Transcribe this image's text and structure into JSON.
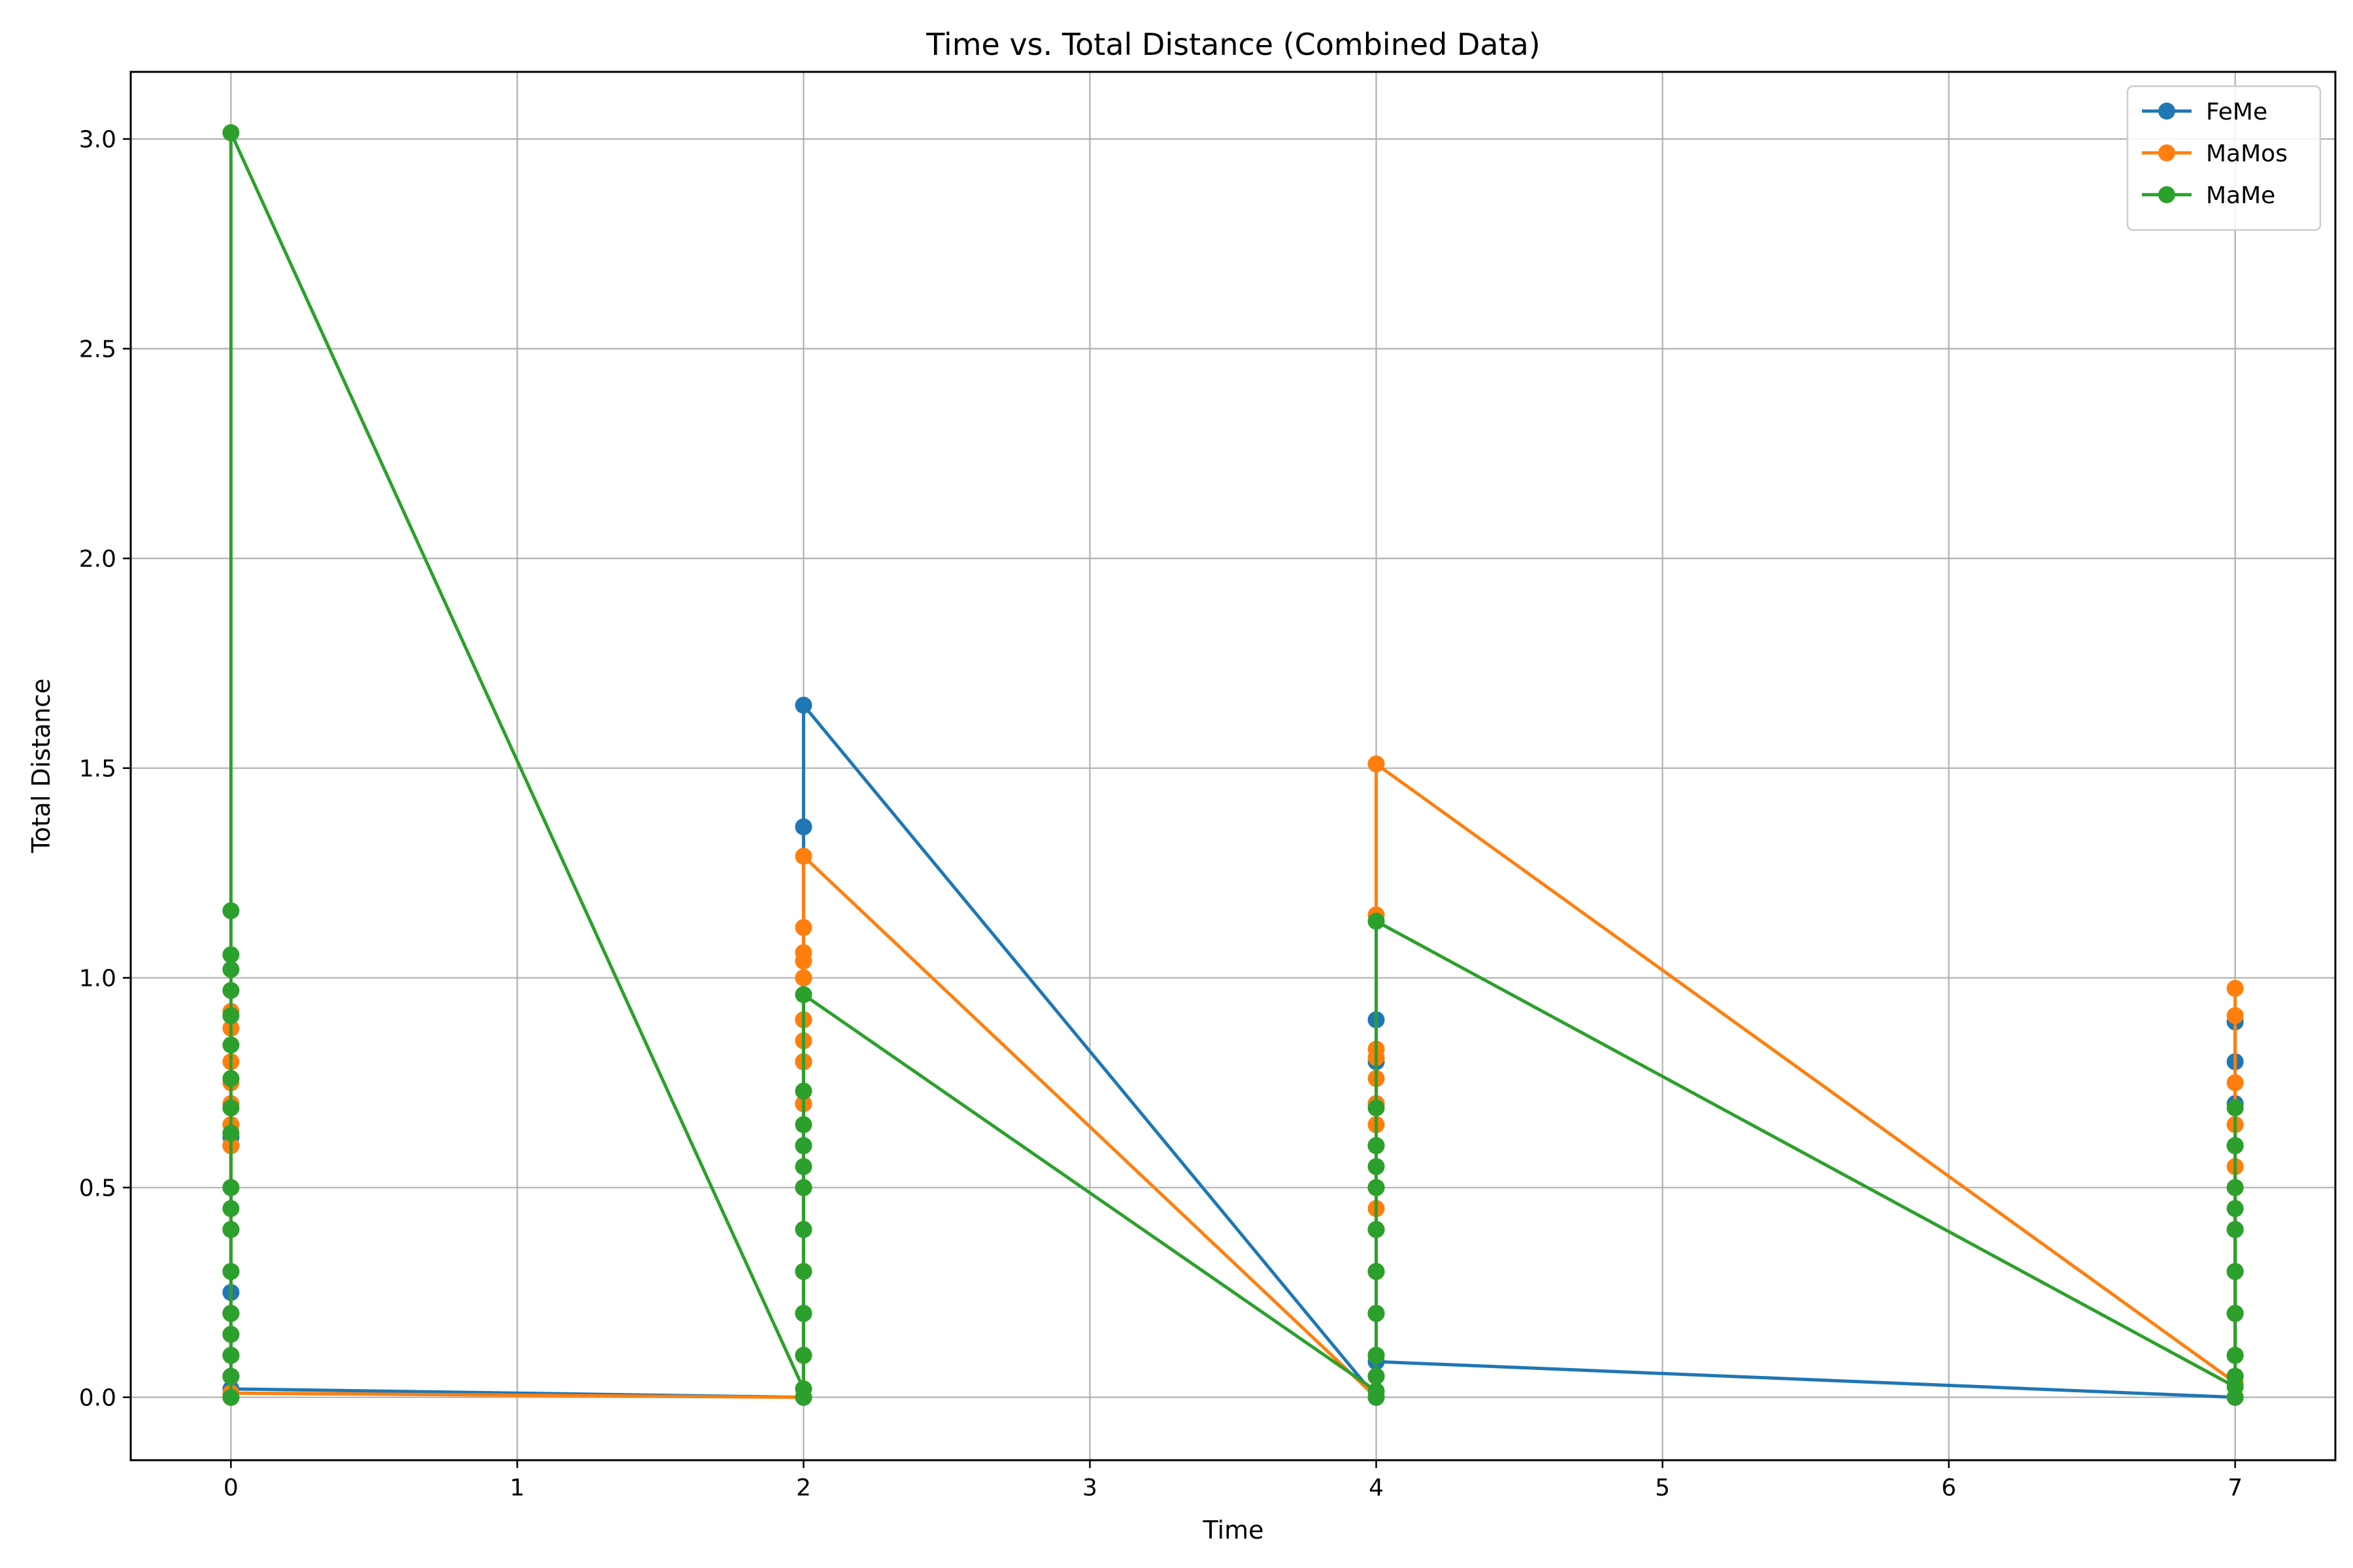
{
  "chart_data": {
    "type": "line",
    "title": "Time vs. Total Distance (Combined Data)",
    "xlabel": "Time",
    "ylabel": "Total Distance",
    "xlim": [
      -0.35,
      7.35
    ],
    "ylim": [
      -0.15,
      3.16
    ],
    "xticks": [
      0,
      1,
      2,
      3,
      4,
      5,
      6,
      7
    ],
    "yticks": [
      0.0,
      0.5,
      1.0,
      1.5,
      2.0,
      2.5,
      3.0
    ],
    "xtick_labels": [
      "0",
      "1",
      "2",
      "3",
      "4",
      "5",
      "6",
      "7"
    ],
    "ytick_labels": [
      "0.0",
      "0.5",
      "1.0",
      "1.5",
      "2.0",
      "2.5",
      "3.0"
    ],
    "grid": true,
    "legend_position": "top-right",
    "series": [
      {
        "name": "FeMe",
        "color": "#1f77b4",
        "x": [
          0,
          0,
          0,
          0,
          0,
          0,
          0,
          0,
          0,
          0,
          0,
          0,
          2,
          2,
          2,
          2,
          2,
          2,
          2,
          2,
          2,
          2,
          2,
          2,
          2,
          4,
          4,
          4,
          4,
          4,
          4,
          4,
          4,
          4,
          4,
          4,
          4,
          7,
          7,
          7,
          7,
          7,
          7,
          7,
          7,
          7,
          7,
          7
        ],
        "y": [
          0.0,
          0.05,
          0.1,
          0.15,
          0.2,
          0.25,
          0.3,
          0.4,
          0.5,
          0.6,
          0.62,
          0.02,
          0.0,
          0.1,
          0.2,
          0.3,
          0.4,
          0.5,
          0.6,
          0.7,
          0.8,
          0.9,
          1.0,
          1.36,
          1.65,
          0.0,
          0.05,
          0.1,
          0.2,
          0.3,
          0.4,
          0.5,
          0.6,
          0.7,
          0.8,
          0.9,
          0.085,
          0.0,
          0.05,
          0.1,
          0.2,
          0.3,
          0.4,
          0.5,
          0.6,
          0.7,
          0.8,
          0.895
        ]
      },
      {
        "name": "MaMos",
        "color": "#ff7f0e",
        "x": [
          0,
          0,
          0,
          0,
          0,
          0,
          0,
          0,
          0,
          0,
          0,
          0,
          0,
          0,
          0,
          2,
          2,
          2,
          2,
          2,
          2,
          2,
          2,
          2,
          2,
          2,
          2,
          2,
          2,
          2,
          2,
          4,
          4,
          4,
          4,
          4,
          4,
          4,
          4,
          4,
          4,
          4,
          4,
          4,
          4,
          4,
          4,
          7,
          7,
          7,
          7,
          7,
          7,
          7,
          7,
          7,
          7,
          7,
          7
        ],
        "y": [
          0.0,
          0.05,
          0.1,
          0.2,
          0.3,
          0.4,
          0.5,
          0.6,
          0.65,
          0.7,
          0.75,
          0.8,
          0.88,
          0.92,
          0.01,
          0.0,
          0.1,
          0.2,
          0.3,
          0.4,
          0.5,
          0.6,
          0.7,
          0.8,
          0.85,
          0.9,
          1.0,
          1.04,
          1.06,
          1.12,
          1.29,
          0.0,
          0.05,
          0.1,
          0.2,
          0.3,
          0.4,
          0.45,
          0.5,
          0.6,
          0.65,
          0.7,
          0.76,
          0.81,
          0.83,
          1.15,
          1.51,
          0.035,
          0.0,
          0.1,
          0.2,
          0.3,
          0.4,
          0.5,
          0.55,
          0.65,
          0.75,
          0.91,
          0.975
        ]
      },
      {
        "name": "MaMe",
        "color": "#2ca02c",
        "x": [
          0,
          0,
          0,
          0,
          0,
          0,
          0,
          0,
          0,
          0,
          0,
          0,
          0,
          0,
          0,
          0,
          0,
          0,
          0,
          2,
          2,
          2,
          2,
          2,
          2,
          2,
          2,
          2,
          2,
          2,
          2,
          4,
          4,
          4,
          4,
          4,
          4,
          4,
          4,
          4,
          4,
          4,
          4,
          7,
          7,
          7,
          7,
          7,
          7,
          7,
          7,
          7,
          7,
          7
        ],
        "y": [
          0.0,
          0.05,
          0.1,
          0.15,
          0.2,
          0.3,
          0.4,
          0.45,
          0.5,
          0.63,
          0.69,
          0.76,
          0.84,
          0.91,
          0.97,
          1.02,
          1.055,
          1.16,
          3.015,
          0.02,
          0.0,
          0.1,
          0.2,
          0.3,
          0.4,
          0.5,
          0.55,
          0.6,
          0.65,
          0.73,
          0.96,
          0.015,
          0.0,
          0.05,
          0.1,
          0.2,
          0.3,
          0.4,
          0.5,
          0.55,
          0.6,
          0.69,
          1.135,
          0.025,
          0.0,
          0.05,
          0.1,
          0.2,
          0.3,
          0.4,
          0.45,
          0.5,
          0.6,
          0.69
        ]
      }
    ]
  }
}
